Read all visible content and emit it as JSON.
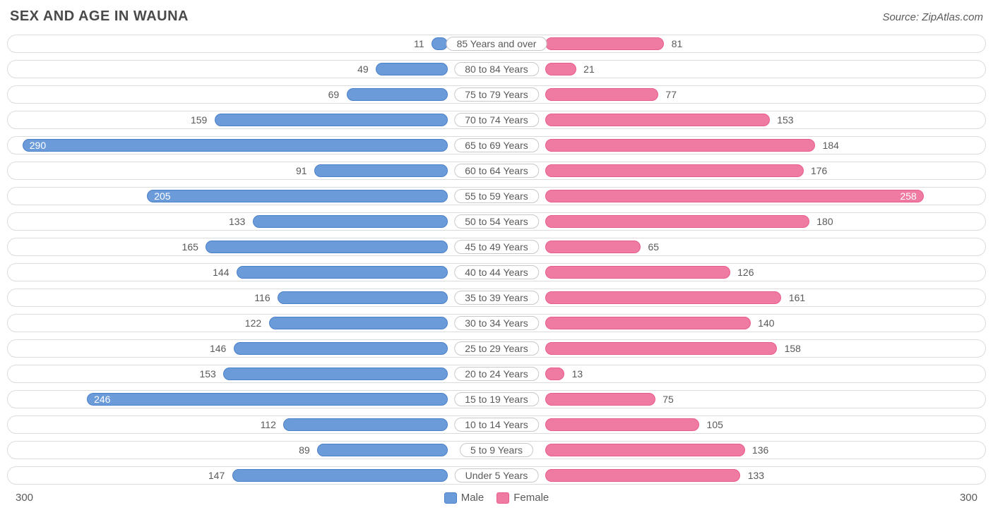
{
  "title": "SEX AND AGE IN WAUNA",
  "source": "Source: ZipAtlas.com",
  "chart": {
    "type": "population-pyramid",
    "axis_max": 300,
    "male_color": "#6c9bd9",
    "male_border": "#4a7fc9",
    "female_color": "#ef7ba3",
    "female_border": "#e85a8c",
    "row_border": "#dcdcdc",
    "inside_label_threshold": 200,
    "rows": [
      {
        "age": "85 Years and over",
        "male": 11,
        "female": 81
      },
      {
        "age": "80 to 84 Years",
        "male": 49,
        "female": 21
      },
      {
        "age": "75 to 79 Years",
        "male": 69,
        "female": 77
      },
      {
        "age": "70 to 74 Years",
        "male": 159,
        "female": 153
      },
      {
        "age": "65 to 69 Years",
        "male": 290,
        "female": 184
      },
      {
        "age": "60 to 64 Years",
        "male": 91,
        "female": 176
      },
      {
        "age": "55 to 59 Years",
        "male": 205,
        "female": 258
      },
      {
        "age": "50 to 54 Years",
        "male": 133,
        "female": 180
      },
      {
        "age": "45 to 49 Years",
        "male": 165,
        "female": 65
      },
      {
        "age": "40 to 44 Years",
        "male": 144,
        "female": 126
      },
      {
        "age": "35 to 39 Years",
        "male": 116,
        "female": 161
      },
      {
        "age": "30 to 34 Years",
        "male": 122,
        "female": 140
      },
      {
        "age": "25 to 29 Years",
        "male": 146,
        "female": 158
      },
      {
        "age": "20 to 24 Years",
        "male": 153,
        "female": 13
      },
      {
        "age": "15 to 19 Years",
        "male": 246,
        "female": 75
      },
      {
        "age": "10 to 14 Years",
        "male": 112,
        "female": 105
      },
      {
        "age": "5 to 9 Years",
        "male": 89,
        "female": 136
      },
      {
        "age": "Under 5 Years",
        "male": 147,
        "female": 133
      }
    ],
    "legend": {
      "male": "Male",
      "female": "Female"
    },
    "axis_label_left": "300",
    "axis_label_right": "300"
  }
}
